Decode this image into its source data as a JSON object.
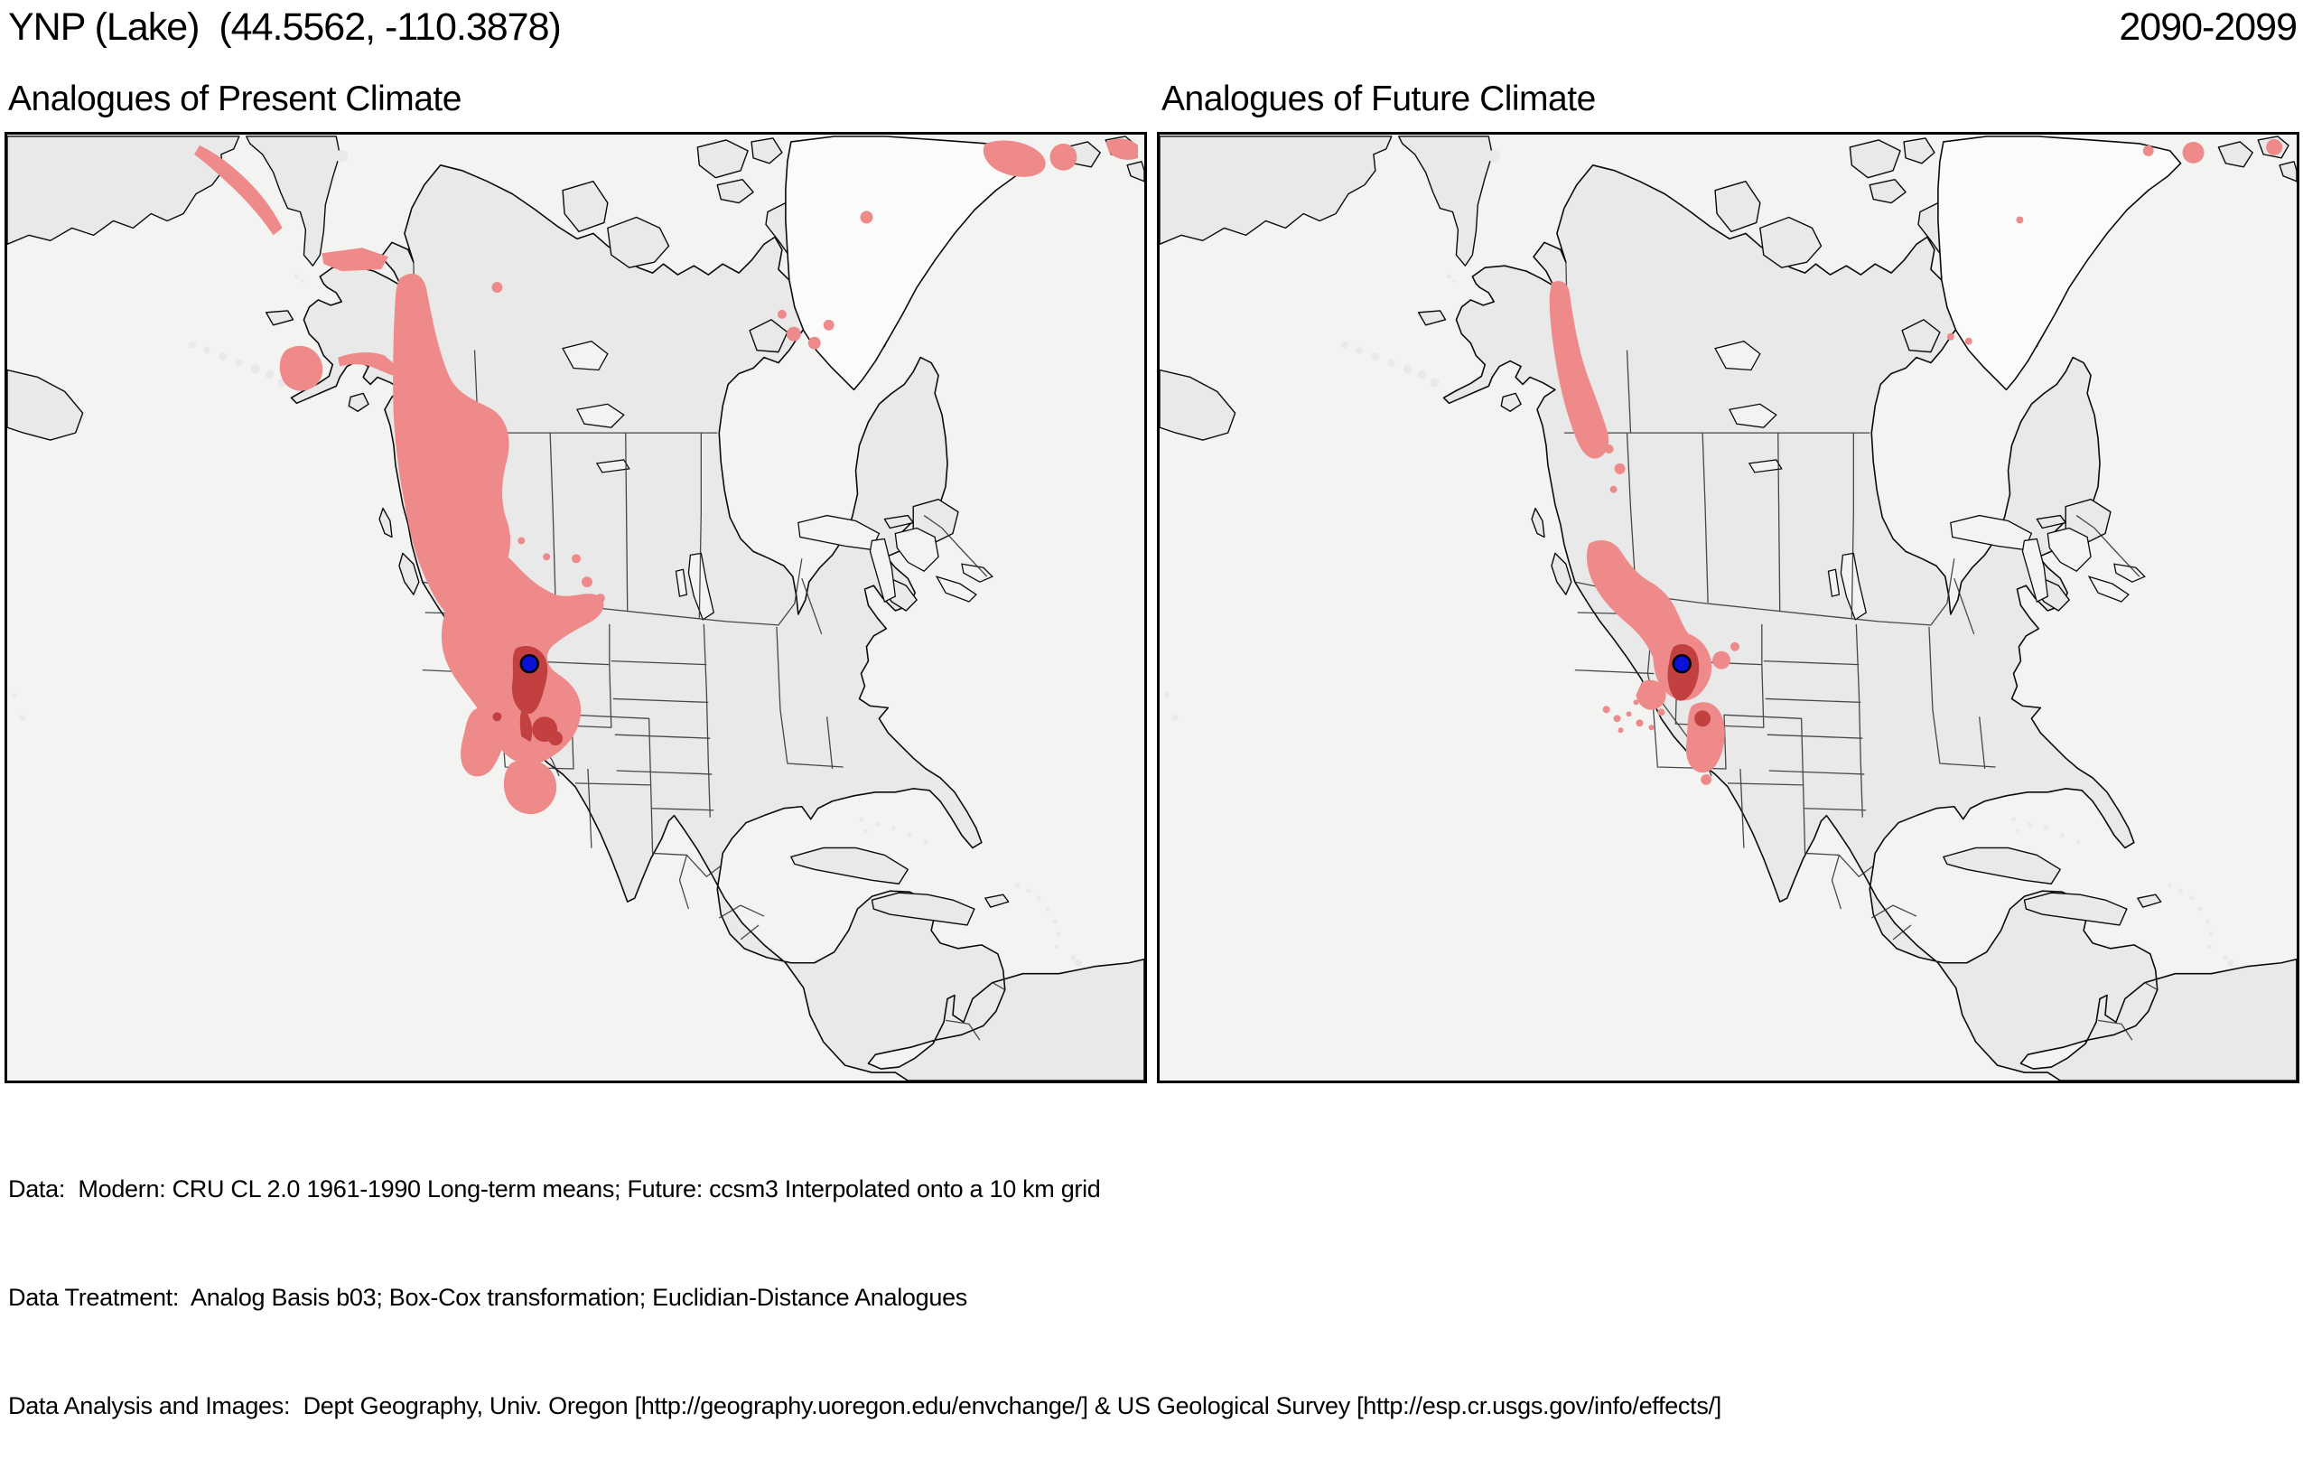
{
  "header": {
    "title": "YNP (Lake)  (44.5562, -110.3878)",
    "period": "2090-2099"
  },
  "panels": [
    {
      "id": "present",
      "subtitle": "Analogues of Present Climate"
    },
    {
      "id": "future",
      "subtitle": "Analogues of Future Climate"
    }
  ],
  "footer": {
    "line1": "Data:  Modern: CRU CL 2.0 1961-1990 Long-term means; Future: ccsm3 Interpolated onto a 10 km grid",
    "line2": "Data Treatment:  Analog Basis b03; Box-Cox transformation; Euclidian-Distance Analogues",
    "line3": "Data Analysis and Images:  Dept Geography, Univ. Oregon [http://geography.uoregon.edu/envchange/] & US Geological Survey [http://esp.cr.usgs.gov/info/effects/]"
  },
  "map": {
    "marker": {
      "name": "YNP (Lake)",
      "lat": 44.5562,
      "lon": -110.3878,
      "color": "#0912d6",
      "outline": "#000000"
    },
    "colors": {
      "ocean": "#f3f3f2",
      "land": "#e9e9e9",
      "ice": "#fbfbfb",
      "coast": "#0a0a0a",
      "state_border": "#2a2a2a",
      "relief": "#b5b5b5",
      "analog_light": "#ee8a8a",
      "analog_dark": "#c24040"
    }
  }
}
